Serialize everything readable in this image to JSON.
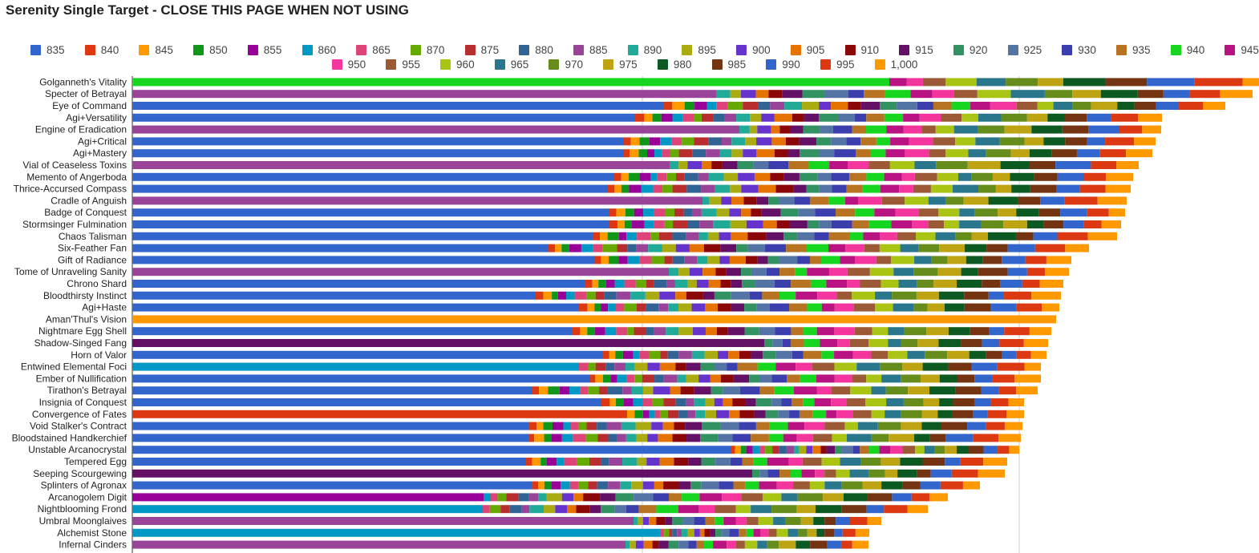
{
  "chart_data": {
    "type": "bar",
    "orientation": "horizontal",
    "stacked": true,
    "title": "Serenity Single Target  - CLOSE THIS PAGE WHEN NOT USING",
    "legend_position": "top",
    "grid": true,
    "series": [
      {
        "name": "835",
        "color": "#3366cc"
      },
      {
        "name": "840",
        "color": "#dc3912"
      },
      {
        "name": "845",
        "color": "#ff9900"
      },
      {
        "name": "850",
        "color": "#109618"
      },
      {
        "name": "855",
        "color": "#990099"
      },
      {
        "name": "860",
        "color": "#0099c6"
      },
      {
        "name": "865",
        "color": "#dd4477"
      },
      {
        "name": "870",
        "color": "#66aa00"
      },
      {
        "name": "875",
        "color": "#b82e2e"
      },
      {
        "name": "880",
        "color": "#316395"
      },
      {
        "name": "885",
        "color": "#994499"
      },
      {
        "name": "890",
        "color": "#22aa99"
      },
      {
        "name": "895",
        "color": "#aaaa11"
      },
      {
        "name": "900",
        "color": "#6633cc"
      },
      {
        "name": "905",
        "color": "#e67300"
      },
      {
        "name": "910",
        "color": "#8b0707"
      },
      {
        "name": "915",
        "color": "#651067"
      },
      {
        "name": "920",
        "color": "#329262"
      },
      {
        "name": "925",
        "color": "#5574a6"
      },
      {
        "name": "930",
        "color": "#3b3eac"
      },
      {
        "name": "935",
        "color": "#b77322"
      },
      {
        "name": "940",
        "color": "#16d620"
      },
      {
        "name": "945",
        "color": "#b91383"
      },
      {
        "name": "950",
        "color": "#f4359e"
      },
      {
        "name": "955",
        "color": "#9c5935"
      },
      {
        "name": "960",
        "color": "#a9c413"
      },
      {
        "name": "965",
        "color": "#2a778d"
      },
      {
        "name": "970",
        "color": "#668d1c"
      },
      {
        "name": "975",
        "color": "#bea413"
      },
      {
        "name": "980",
        "color": "#0c5922"
      },
      {
        "name": "985",
        "color": "#743411"
      },
      {
        "name": "990",
        "color": "#3366cc"
      },
      {
        "name": "995",
        "color": "#dc3912"
      },
      {
        "name": "1,000",
        "color": "#ff9900"
      }
    ],
    "categories": [
      "Golganneth's Vitality",
      "Specter of Betrayal",
      "Eye of Command",
      "Agi+Versatility",
      "Engine of Eradication",
      "Agi+Critical",
      "Agi+Mastery",
      "Vial of Ceaseless Toxins",
      "Memento of Angerboda",
      "Thrice-Accursed Compass",
      "Cradle of Anguish",
      "Badge of Conquest",
      "Stormsinger Fulmination",
      "Chaos Talisman",
      "Six-Feather Fan",
      "Gift of Radiance",
      "Tome of Unraveling Sanity",
      "Chrono Shard",
      "Bloodthirsty Instinct",
      "Agi+Haste",
      "Aman'Thul's Vision",
      "Nightmare Egg Shell",
      "Shadow-Singed Fang",
      "Horn of Valor",
      "Entwined Elemental Foci",
      "Ember of Nullification",
      "Tirathon's Betrayal",
      "Insignia of Conquest",
      "Convergence of Fates",
      "Void Stalker's Contract",
      "Bloodstained Handkerchief",
      "Unstable Arcanocrystal",
      "Tempered Egg",
      "Seeping Scourgewing",
      "Splinters of Agronax",
      "Arcanogolem Digit",
      "Nightblooming Frond",
      "Umbral Moonglaives",
      "Alchemist Stone",
      "Infernal Cinders"
    ],
    "base_series": [
      21,
      10,
      0,
      0,
      10,
      0,
      0,
      10,
      0,
      0,
      10,
      0,
      0,
      0,
      0,
      0,
      10,
      0,
      0,
      0,
      33,
      0,
      16,
      0,
      5,
      0,
      0,
      0,
      1,
      0,
      0,
      0,
      0,
      16,
      0,
      4,
      5,
      10,
      5,
      10
    ],
    "totals": [
      1435,
      1397,
      1363,
      1284,
      1283,
      1276,
      1272,
      1255,
      1248,
      1245,
      1240,
      1238,
      1233,
      1228,
      1193,
      1171,
      1168,
      1161,
      1158,
      1156,
      1152,
      1146,
      1142,
      1140,
      1133,
      1133,
      1129,
      1112,
      1112,
      1110,
      1108,
      1106,
      1091,
      1088,
      1057,
      1017,
      992,
      934,
      919,
      918
    ],
    "base_values": [
      944,
      728,
      662,
      627,
      757,
      613,
      613,
      670,
      601,
      593,
      711,
      594,
      594,
      575,
      519,
      576,
      669,
      565,
      503,
      557,
      1152,
      549,
      788,
      587,
      557,
      571,
      499,
      585,
      617,
      494,
      494,
      747,
      490,
      773,
      498,
      438,
      437,
      625,
      658,
      615
    ],
    "x_axis": {
      "min": 0,
      "gridlines": [
        636,
        1106
      ]
    }
  }
}
